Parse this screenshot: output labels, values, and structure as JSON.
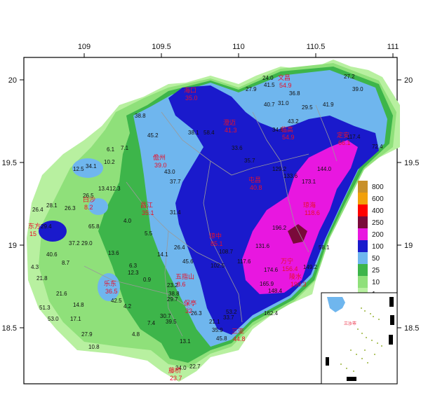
{
  "map": {
    "x_ticks": [
      "109",
      "109.5",
      "110",
      "110.5",
      "111"
    ],
    "y_ticks": [
      "20",
      "19.5",
      "19",
      "18.5"
    ],
    "colors": {
      "c1": "#b8f0a0",
      "c10": "#8fe07a",
      "c25": "#3db54a",
      "c50": "#6fb6ee",
      "c100": "#1a1acc",
      "c250": "#e817e0",
      "c400": "#7a0a3a",
      "c600": "#ff0000",
      "c800": "#f2a00a",
      "c1000": "#c8902a",
      "boundary": "#9a9a9a",
      "frame": "#000000"
    },
    "legend": [
      {
        "label": "800",
        "color": "#c8902a"
      },
      {
        "label": "600",
        "color": "#f2a00a"
      },
      {
        "label": "400",
        "color": "#ff0000"
      },
      {
        "label": "250",
        "color": "#7a0a3a"
      },
      {
        "label": "200",
        "color": "#e817e0"
      },
      {
        "label": "100",
        "color": "#1a1acc"
      },
      {
        "label": "50",
        "color": "#6fb6ee"
      },
      {
        "label": "25",
        "color": "#3db54a"
      },
      {
        "label": "10",
        "color": "#8fe07a"
      },
      {
        "label": "1",
        "color": "#b8f0a0"
      }
    ],
    "stations": [
      {
        "name": "海口",
        "value": "35.0"
      },
      {
        "name": "文昌",
        "value": "54.9"
      },
      {
        "name": "澄迈",
        "value": "41.3"
      },
      {
        "name": "临高",
        "value": "54.9"
      },
      {
        "name": "儋州",
        "value": "39.0"
      },
      {
        "name": "定安",
        "value": "66.1"
      },
      {
        "name": "屯昌",
        "value": "40.8"
      },
      {
        "name": "琼海",
        "value": "118.6"
      },
      {
        "name": "白沙",
        "value": "8.2"
      },
      {
        "name": "昌江",
        "value": "35.1"
      },
      {
        "name": "琼中",
        "value": "85.1"
      },
      {
        "name": "东方",
        "value": "15"
      },
      {
        "name": "五指山",
        "value": "8.6"
      },
      {
        "name": "万宁",
        "value": "156.4"
      },
      {
        "name": "陵水",
        "value": "190.3"
      },
      {
        "name": "保亭",
        "value": "32"
      },
      {
        "name": "乐东",
        "value": "36.5"
      },
      {
        "name": "三亚",
        "value": "44.8"
      },
      {
        "name": "藤桥",
        "value": "23.7"
      }
    ],
    "point_values": [
      "27.2",
      "39.0",
      "24.0",
      "41.5",
      "27.9",
      "36.8",
      "40.7",
      "31.0",
      "29.5",
      "41.9",
      "38.8",
      "45.2",
      "38.1",
      "58.4",
      "33.6",
      "35.7",
      "43.2",
      "34.5",
      "129.2",
      "133.6",
      "173.1",
      "144.0",
      "117.4",
      "72.4",
      "6.1",
      "7.1",
      "10.2",
      "12.5",
      "34.1",
      "13.4",
      "12.3",
      "26.5",
      "26.4",
      "28.1",
      "26.3",
      "29.4",
      "65.8",
      "37.2",
      "29.0",
      "40.6",
      "13.6",
      "4.0",
      "5.5",
      "14.1",
      "26.4",
      "31.4",
      "37.7",
      "43.0",
      "45.6",
      "108.7",
      "102.5",
      "117.6",
      "131.6",
      "174.6",
      "165.9",
      "148.4",
      "162.4",
      "196.2",
      "149.2",
      "58.1",
      "4.3",
      "8.7",
      "21.8",
      "21.6",
      "14.8",
      "42.5",
      "4.2",
      "51.3",
      "53.0",
      "17.1",
      "27.9",
      "10.8",
      "4.8",
      "7.4",
      "30.7",
      "39.5",
      "13.1",
      "21.1",
      "35.9",
      "45.8",
      "53.2",
      "33.7",
      "26.3",
      "24.0",
      "22.7",
      "6.3",
      "12.3",
      "0.9",
      "23.2",
      "38.8",
      "29.7"
    ],
    "inset_label": "三沙市"
  }
}
